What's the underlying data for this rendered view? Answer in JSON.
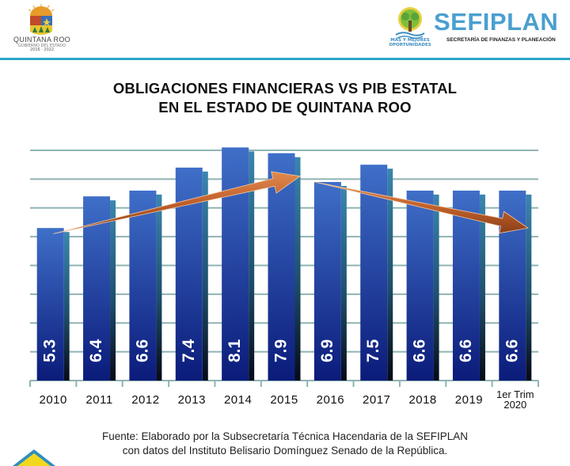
{
  "header": {
    "left_logo": {
      "name": "QUINTANA ROO",
      "subtitle": "GOBIERNO DEL ESTADO",
      "years": "2016 · 2022"
    },
    "right_logo": {
      "name": "SEFIPLAN",
      "subtitle": "SECRETARÍA DE FINANZAS Y PLANEACIÓN",
      "tagline_line1": "MÁS Y MEJORES",
      "tagline_line2": "OPORTUNIDADES"
    },
    "accent_color": "#2aa6c9"
  },
  "chart_data": {
    "type": "bar",
    "title": "OBLIGACIONES FINANCIERAS VS PIB ESTATAL EN EL ESTADO DE QUINTANA ROO",
    "title_lines": [
      "OBLIGACIONES FINANCIERAS VS PIB ESTATAL",
      "EN EL ESTADO DE QUINTANA ROO"
    ],
    "xlabel": "",
    "ylabel": "",
    "categories": [
      "2010",
      "2011",
      "2012",
      "2013",
      "2014",
      "2015",
      "2016",
      "2017",
      "2018",
      "2019",
      "1er Trim 2020"
    ],
    "category_lines": [
      [
        "2010"
      ],
      [
        "2011"
      ],
      [
        "2012"
      ],
      [
        "2013"
      ],
      [
        "2014"
      ],
      [
        "2015"
      ],
      [
        "2016"
      ],
      [
        "2017"
      ],
      [
        "2018"
      ],
      [
        "2019"
      ],
      [
        "1er Trim",
        "2020"
      ]
    ],
    "values": [
      5.3,
      6.4,
      6.6,
      7.4,
      8.1,
      7.9,
      6.9,
      7.5,
      6.6,
      6.6,
      6.6
    ],
    "value_labels": [
      "5.3",
      "6.4",
      "6.6",
      "7.4",
      "8.1",
      "7.9",
      "6.9",
      "7.5",
      "6.6",
      "6.6",
      "6.6"
    ],
    "ylim": [
      0,
      8
    ],
    "y_gridline_step": 1,
    "grid": true,
    "y_tick_labels_shown": false,
    "legend": "none",
    "bar_color_top": "#3f6fc8",
    "bar_color_bottom": "#0b1b7a",
    "gridline_color": "#8fb3b3",
    "annotations": [
      {
        "type": "trend-arrow",
        "direction": "up",
        "from": {
          "category": "2010",
          "value": 5.1
        },
        "to": {
          "category": "2015",
          "value": 7.1
        },
        "color": "#c0602a"
      },
      {
        "type": "trend-arrow",
        "direction": "down",
        "from": {
          "category": "2016",
          "value": 6.9
        },
        "to": {
          "category": "1er Trim 2020",
          "value": 5.3
        },
        "color": "#c0602a"
      }
    ]
  },
  "footer": {
    "source_line1": "Fuente: Elaborado por la Subsecretaría Técnica Hacendaria de la SEFIPLAN",
    "source_line2": "con datos del Instituto Belisario Domínguez Senado de la República."
  }
}
